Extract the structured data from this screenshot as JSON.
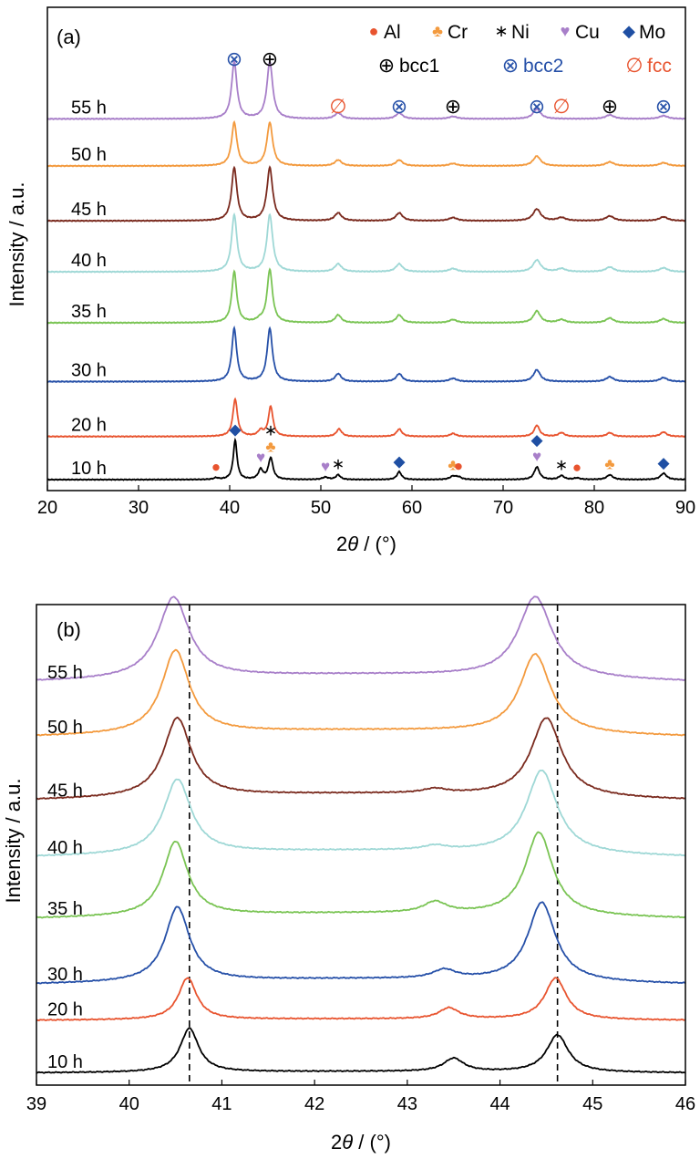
{
  "chart_data": [
    {
      "type": "line",
      "panel_label": "(a)",
      "xlabel_prefix": "2",
      "xlabel_symbol": "θ",
      "xlabel_suffix": " / (°)",
      "ylabel": "Intensity / a.u.",
      "xlim": [
        20,
        90
      ],
      "xticks": [
        20,
        30,
        40,
        50,
        60,
        70,
        80,
        90
      ],
      "series": [
        {
          "name": "10 h",
          "color": "#000000",
          "offset": 0,
          "height_scale": 1.0,
          "peaks": [
            [
              38.5,
              0.04,
              0.3
            ],
            [
              40.6,
              1.0,
              0.25
            ],
            [
              43.4,
              0.25,
              0.3
            ],
            [
              44.5,
              0.55,
              0.3
            ],
            [
              50.5,
              0.06,
              0.4
            ],
            [
              51.9,
              0.12,
              0.3
            ],
            [
              58.6,
              0.2,
              0.3
            ],
            [
              64.5,
              0.08,
              0.4
            ],
            [
              65.1,
              0.06,
              0.4
            ],
            [
              73.7,
              0.32,
              0.35
            ],
            [
              76.4,
              0.1,
              0.35
            ],
            [
              78.1,
              0.04,
              0.4
            ],
            [
              81.7,
              0.12,
              0.4
            ],
            [
              87.6,
              0.16,
              0.4
            ]
          ]
        },
        {
          "name": "20 h",
          "color": "#e8542f",
          "offset": 1.1,
          "height_scale": 0.95,
          "peaks": [
            [
              40.6,
              1.0,
              0.3
            ],
            [
              43.4,
              0.15,
              0.35
            ],
            [
              44.5,
              0.8,
              0.3
            ],
            [
              52.0,
              0.2,
              0.35
            ],
            [
              58.6,
              0.2,
              0.35
            ],
            [
              64.5,
              0.08,
              0.4
            ],
            [
              73.7,
              0.3,
              0.35
            ],
            [
              76.4,
              0.1,
              0.4
            ],
            [
              81.7,
              0.1,
              0.4
            ],
            [
              87.6,
              0.12,
              0.4
            ]
          ]
        },
        {
          "name": "30 h",
          "color": "#2650a8",
          "offset": 2.5,
          "height_scale": 1.0,
          "peaks": [
            [
              40.5,
              1.35,
              0.32
            ],
            [
              44.4,
              1.35,
              0.35
            ],
            [
              51.9,
              0.2,
              0.4
            ],
            [
              58.6,
              0.2,
              0.4
            ],
            [
              64.5,
              0.08,
              0.5
            ],
            [
              73.7,
              0.3,
              0.45
            ],
            [
              81.7,
              0.12,
              0.5
            ],
            [
              87.6,
              0.1,
              0.5
            ]
          ]
        },
        {
          "name": "35 h",
          "color": "#7ac454",
          "offset": 4.0,
          "height_scale": 1.0,
          "peaks": [
            [
              40.5,
              1.3,
              0.32
            ],
            [
              43.3,
              0.06,
              0.4
            ],
            [
              44.4,
              1.35,
              0.35
            ],
            [
              51.9,
              0.2,
              0.4
            ],
            [
              58.6,
              0.2,
              0.4
            ],
            [
              64.5,
              0.08,
              0.5
            ],
            [
              73.7,
              0.3,
              0.45
            ],
            [
              76.4,
              0.08,
              0.5
            ],
            [
              81.7,
              0.12,
              0.5
            ],
            [
              87.6,
              0.1,
              0.5
            ]
          ]
        },
        {
          "name": "40 h",
          "color": "#9fd8d6",
          "offset": 5.3,
          "height_scale": 1.0,
          "peaks": [
            [
              40.5,
              1.45,
              0.35
            ],
            [
              44.4,
              1.45,
              0.38
            ],
            [
              51.9,
              0.2,
              0.45
            ],
            [
              58.6,
              0.2,
              0.45
            ],
            [
              64.5,
              0.08,
              0.55
            ],
            [
              73.7,
              0.3,
              0.5
            ],
            [
              76.4,
              0.08,
              0.55
            ],
            [
              81.7,
              0.12,
              0.55
            ],
            [
              87.6,
              0.1,
              0.55
            ]
          ]
        },
        {
          "name": "45 h",
          "color": "#7a2a1e",
          "offset": 6.6,
          "height_scale": 1.0,
          "peaks": [
            [
              40.5,
              1.35,
              0.35
            ],
            [
              44.4,
              1.35,
              0.38
            ],
            [
              51.9,
              0.2,
              0.45
            ],
            [
              58.6,
              0.2,
              0.45
            ],
            [
              64.5,
              0.08,
              0.55
            ],
            [
              73.7,
              0.3,
              0.5
            ],
            [
              76.4,
              0.08,
              0.55
            ],
            [
              81.7,
              0.12,
              0.55
            ],
            [
              87.6,
              0.1,
              0.55
            ]
          ]
        },
        {
          "name": "50 h",
          "color": "#f39a3e",
          "offset": 8.0,
          "height_scale": 1.0,
          "peaks": [
            [
              40.5,
              1.1,
              0.35
            ],
            [
              44.4,
              1.1,
              0.38
            ],
            [
              51.9,
              0.15,
              0.45
            ],
            [
              58.6,
              0.15,
              0.45
            ],
            [
              64.5,
              0.06,
              0.55
            ],
            [
              73.7,
              0.25,
              0.5
            ],
            [
              81.7,
              0.1,
              0.55
            ],
            [
              87.6,
              0.08,
              0.55
            ]
          ]
        },
        {
          "name": "55 h",
          "color": "#a87fc9",
          "offset": 9.2,
          "height_scale": 1.0,
          "peaks": [
            [
              40.5,
              1.45,
              0.35
            ],
            [
              44.4,
              1.45,
              0.38
            ],
            [
              51.9,
              0.15,
              0.45
            ],
            [
              58.6,
              0.15,
              0.45
            ],
            [
              64.5,
              0.06,
              0.55
            ],
            [
              73.7,
              0.25,
              0.5
            ],
            [
              81.7,
              0.1,
              0.55
            ],
            [
              87.6,
              0.08,
              0.55
            ]
          ]
        }
      ],
      "legend": [
        {
          "symbol": "●",
          "label": "Al",
          "color": "#e8542f"
        },
        {
          "symbol": "♣",
          "label": "Cr",
          "color": "#f39a3e"
        },
        {
          "symbol": "∗",
          "label": "Ni",
          "color": "#000000"
        },
        {
          "symbol": "♥",
          "label": "Cu",
          "color": "#a87fc9"
        },
        {
          "symbol": "◆",
          "label": "Mo",
          "color": "#1f4fa3"
        },
        {
          "symbol": "⊕",
          "label": "bcc1",
          "color": "#000000",
          "label_color": "#000000"
        },
        {
          "symbol": "⊗",
          "label": "bcc2",
          "color": "#2650a8",
          "label_color": "#2650a8"
        },
        {
          "symbol": "∅",
          "label": "fcc",
          "color": "#e8542f",
          "label_color": "#e8542f"
        }
      ],
      "phase_markers": [
        {
          "x": 40.5,
          "symbol": "⊗",
          "color": "#2650a8",
          "level": "high"
        },
        {
          "x": 44.4,
          "symbol": "⊕",
          "color": "#000000",
          "level": "high"
        },
        {
          "x": 51.9,
          "symbol": "∅",
          "color": "#e8542f",
          "level": "low"
        },
        {
          "x": 58.6,
          "symbol": "⊗",
          "color": "#2650a8",
          "level": "low"
        },
        {
          "x": 64.5,
          "symbol": "⊕",
          "color": "#000000",
          "level": "low"
        },
        {
          "x": 73.7,
          "symbol": "⊗",
          "color": "#2650a8",
          "level": "low"
        },
        {
          "x": 76.4,
          "symbol": "∅",
          "color": "#e8542f",
          "level": "low"
        },
        {
          "x": 81.7,
          "symbol": "⊕",
          "color": "#000000",
          "level": "low"
        },
        {
          "x": 87.6,
          "symbol": "⊗",
          "color": "#2650a8",
          "level": "low"
        }
      ],
      "element_markers": [
        {
          "x": 38.5,
          "symbol": "●",
          "color": "#e8542f",
          "stack": 0
        },
        {
          "x": 40.6,
          "symbol": "◆",
          "color": "#1f4fa3",
          "stack": 0
        },
        {
          "x": 43.4,
          "symbol": "♥",
          "color": "#a87fc9",
          "stack": 0
        },
        {
          "x": 44.5,
          "symbol": "♣",
          "color": "#f39a3e",
          "stack": 0
        },
        {
          "x": 44.5,
          "symbol": "∗",
          "color": "#000000",
          "stack": 1
        },
        {
          "x": 50.5,
          "symbol": "♥",
          "color": "#a87fc9",
          "stack": 0
        },
        {
          "x": 51.9,
          "symbol": "∗",
          "color": "#000000",
          "stack": 0
        },
        {
          "x": 58.6,
          "symbol": "◆",
          "color": "#1f4fa3",
          "stack": 0
        },
        {
          "x": 64.5,
          "symbol": "♣",
          "color": "#f39a3e",
          "stack": 0
        },
        {
          "x": 65.1,
          "symbol": "●",
          "color": "#e8542f",
          "stack": 0
        },
        {
          "x": 73.7,
          "symbol": "♥",
          "color": "#a87fc9",
          "stack": 0
        },
        {
          "x": 73.7,
          "symbol": "◆",
          "color": "#1f4fa3",
          "stack": 1
        },
        {
          "x": 76.4,
          "symbol": "∗",
          "color": "#000000",
          "stack": 0
        },
        {
          "x": 78.1,
          "symbol": "●",
          "color": "#e8542f",
          "stack": 0
        },
        {
          "x": 81.7,
          "symbol": "♣",
          "color": "#f39a3e",
          "stack": 0
        },
        {
          "x": 87.6,
          "symbol": "◆",
          "color": "#1f4fa3",
          "stack": 0
        }
      ]
    },
    {
      "type": "line",
      "panel_label": "(b)",
      "xlabel_prefix": "2",
      "xlabel_symbol": "θ",
      "xlabel_suffix": " / (°)",
      "ylabel": "Intensity / a.u.",
      "xlim": [
        39,
        46
      ],
      "xticks": [
        39,
        40,
        41,
        42,
        43,
        44,
        45,
        46
      ],
      "reference_lines": [
        40.65,
        44.62
      ],
      "series": [
        {
          "name": "10 h",
          "color": "#000000",
          "offset": 0,
          "peaks": [
            [
              40.65,
              1.0,
              0.12
            ],
            [
              43.5,
              0.3,
              0.13
            ],
            [
              44.62,
              0.85,
              0.14
            ]
          ],
          "baseline_hump": 0.04
        },
        {
          "name": "20 h",
          "color": "#e8542f",
          "offset": 1.2,
          "peaks": [
            [
              40.63,
              0.95,
              0.12
            ],
            [
              43.45,
              0.25,
              0.13
            ],
            [
              44.6,
              0.95,
              0.14
            ]
          ],
          "baseline_hump": 0.04
        },
        {
          "name": "30 h",
          "color": "#2650a8",
          "offset": 2.0,
          "peaks": [
            [
              40.52,
              1.7,
              0.16
            ],
            [
              43.4,
              0.2,
              0.15
            ],
            [
              44.45,
              1.8,
              0.18
            ]
          ],
          "baseline_hump": 0.15
        },
        {
          "name": "35 h",
          "color": "#7ac454",
          "offset": 3.5,
          "peaks": [
            [
              40.5,
              1.7,
              0.16
            ],
            [
              43.3,
              0.25,
              0.15
            ],
            [
              44.42,
              1.9,
              0.18
            ]
          ],
          "baseline_hump": 0.15
        },
        {
          "name": "40 h",
          "color": "#9fd8d6",
          "offset": 4.9,
          "peaks": [
            [
              40.52,
              1.7,
              0.18
            ],
            [
              43.3,
              0.1,
              0.15
            ],
            [
              44.45,
              1.9,
              0.2
            ]
          ],
          "baseline_hump": 0.18
        },
        {
          "name": "45 h",
          "color": "#7a2a1e",
          "offset": 6.2,
          "peaks": [
            [
              40.52,
              1.8,
              0.18
            ],
            [
              43.3,
              0.1,
              0.15
            ],
            [
              44.5,
              1.8,
              0.2
            ]
          ],
          "baseline_hump": 0.18
        },
        {
          "name": "50 h",
          "color": "#f39a3e",
          "offset": 7.65,
          "peaks": [
            [
              40.5,
              1.9,
              0.18
            ],
            [
              44.38,
              1.8,
              0.2
            ]
          ],
          "baseline_hump": 0.18
        },
        {
          "name": "55 h",
          "color": "#a87fc9",
          "offset": 8.9,
          "peaks": [
            [
              40.48,
              1.85,
              0.2
            ],
            [
              44.38,
              1.85,
              0.22
            ]
          ],
          "baseline_hump": 0.2
        }
      ]
    }
  ]
}
